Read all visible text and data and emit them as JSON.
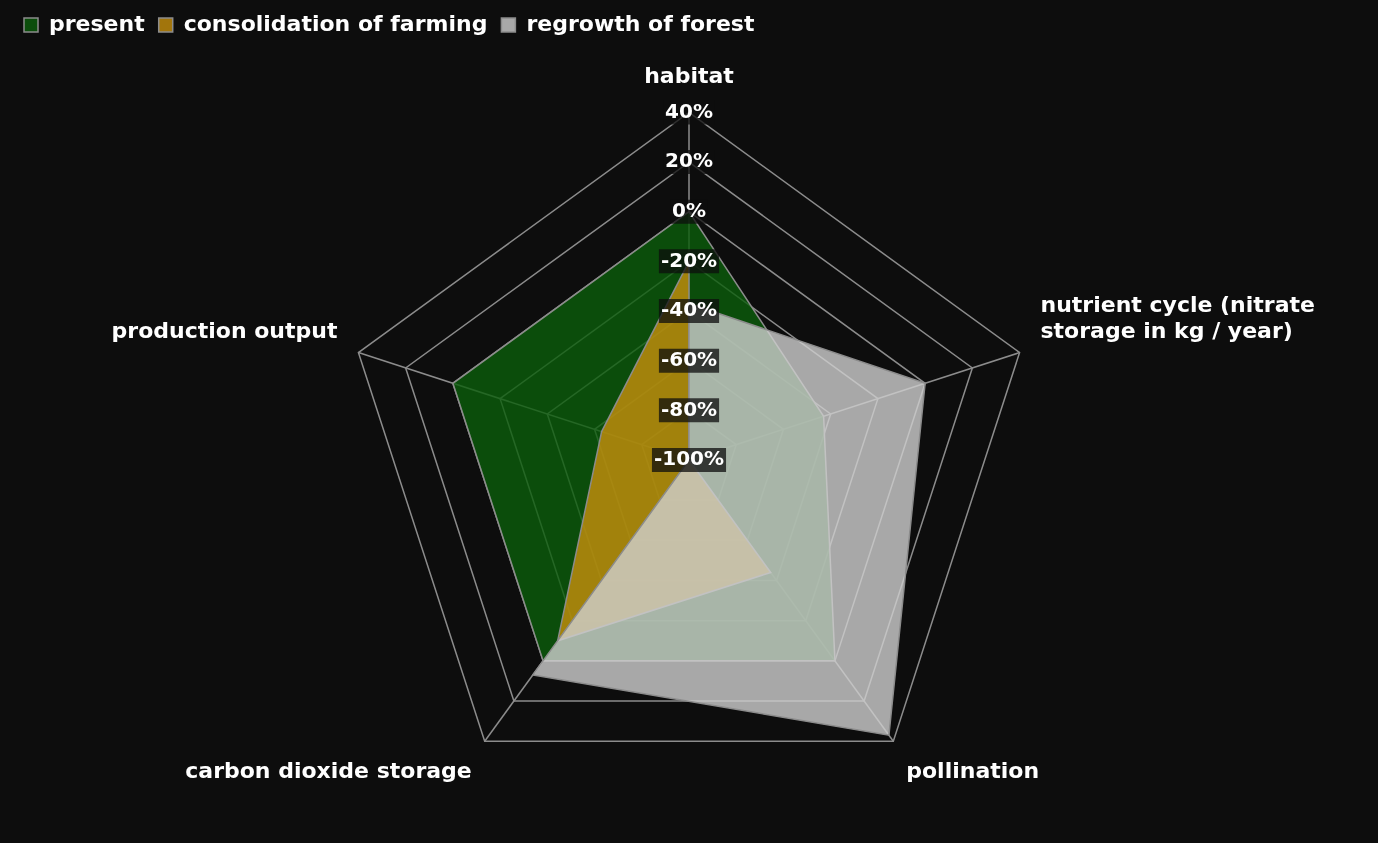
{
  "chart_data": {
    "type": "radar",
    "categories": [
      "habitat",
      "nutrient cycle (nitrate storage in kg / year)",
      "pollination",
      "carbon dioxide storage",
      "production output"
    ],
    "series": [
      {
        "name": "present",
        "color": "#0b5e0b",
        "values": [
          0,
          -43,
          0,
          0,
          0
        ]
      },
      {
        "name": "consolidation of farming",
        "color": "#c8900c",
        "values": [
          -20,
          -100,
          -44,
          -10,
          -63
        ]
      },
      {
        "name": "regrowth of forest",
        "color": "#d0d0d0",
        "values": [
          -37,
          0,
          37,
          7,
          -100
        ]
      }
    ],
    "ylim": [
      -100,
      40
    ],
    "yticks": [
      {
        "value": -100,
        "label": "-100%"
      },
      {
        "value": -80,
        "label": "-80%"
      },
      {
        "value": -60,
        "label": "-60%"
      },
      {
        "value": -40,
        "label": "-40%"
      },
      {
        "value": -20,
        "label": "-20%"
      },
      {
        "value": 0,
        "label": "0%"
      },
      {
        "value": 20,
        "label": "20%"
      },
      {
        "value": 40,
        "label": "40%"
      }
    ],
    "grid": true,
    "legend": "top left",
    "marker": "none"
  }
}
